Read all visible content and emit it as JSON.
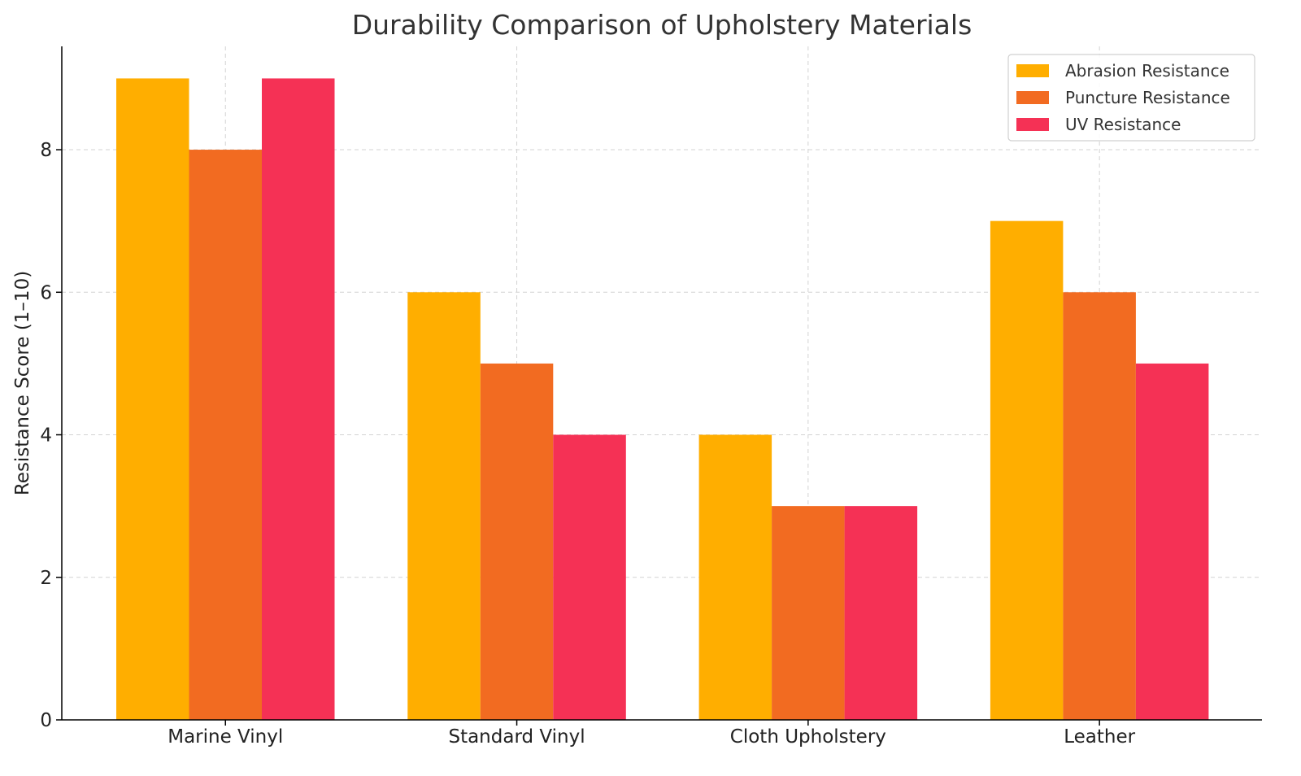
{
  "chart_data": {
    "type": "bar",
    "title": "Durability Comparison of Upholstery Materials",
    "xlabel": "",
    "ylabel": "Resistance Score (1–10)",
    "categories": [
      "Marine Vinyl",
      "Standard Vinyl",
      "Cloth Upholstery",
      "Leather"
    ],
    "series": [
      {
        "name": "Abrasion Resistance",
        "values": [
          9,
          6,
          4,
          7
        ],
        "color": "#FFAE00"
      },
      {
        "name": "Puncture Resistance",
        "values": [
          8,
          5,
          3,
          6
        ],
        "color": "#F26B21"
      },
      {
        "name": "UV Resistance",
        "values": [
          9,
          4,
          3,
          5
        ],
        "color": "#F53155"
      }
    ],
    "ylim": [
      0,
      9.45
    ],
    "yticks": [
      "0",
      "2",
      "4",
      "6",
      "8"
    ],
    "grid": true,
    "legend": "top-right"
  }
}
